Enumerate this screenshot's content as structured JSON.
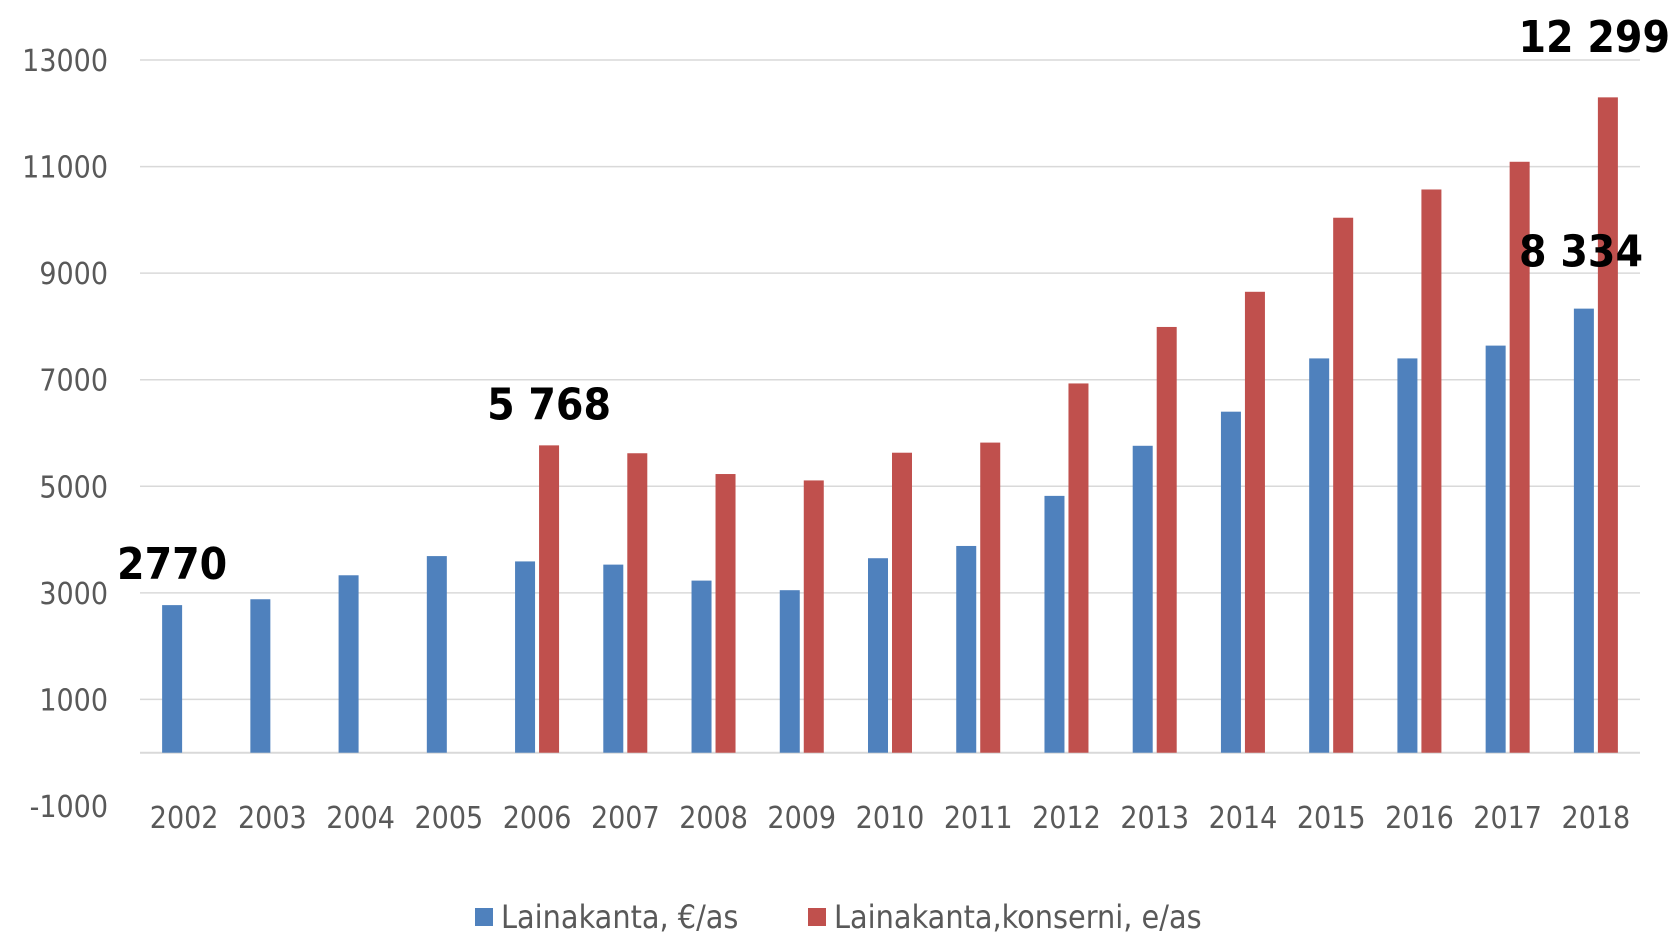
{
  "chart_data": {
    "type": "bar",
    "categories": [
      "2002",
      "2003",
      "2004",
      "2005",
      "2006",
      "2007",
      "2008",
      "2009",
      "2010",
      "2011",
      "2012",
      "2013",
      "2014",
      "2015",
      "2016",
      "2017",
      "2018"
    ],
    "series": [
      {
        "name": "Lainakanta, €/as",
        "color": "#4f81bd",
        "values": [
          2770,
          2880,
          3330,
          3690,
          3590,
          3530,
          3230,
          3050,
          3650,
          3880,
          4820,
          5760,
          6400,
          7400,
          7400,
          7640,
          8334
        ]
      },
      {
        "name": "Lainakanta,konserni, e/as",
        "color": "#c0504d",
        "values": [
          null,
          null,
          null,
          null,
          5768,
          5620,
          5230,
          5110,
          5630,
          5820,
          6930,
          7990,
          8650,
          10040,
          10570,
          11090,
          12299
        ]
      }
    ],
    "ylim": [
      -1000,
      13000
    ],
    "yticks": [
      "13000",
      "11000",
      "9000",
      "7000",
      "5000",
      "3000",
      "1000",
      "-1000"
    ],
    "grid": true,
    "legend_position": "bottom",
    "annotations": [
      {
        "text": "2770",
        "category": "2002",
        "series": 0
      },
      {
        "text": "5 768",
        "category": "2006",
        "series": 1
      },
      {
        "text": "12 299",
        "category": "2018",
        "series": 1
      },
      {
        "text": "8 334",
        "category": "2018",
        "series": 0
      }
    ]
  }
}
